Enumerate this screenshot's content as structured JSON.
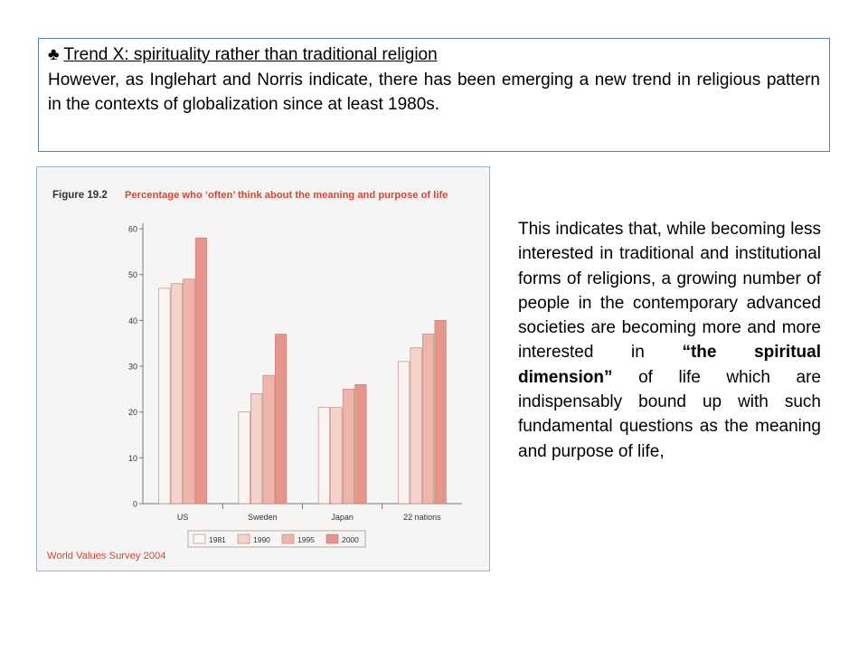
{
  "header": {
    "bullet": "♣",
    "title": "Trend X: spirituality rather than traditional religion",
    "intro": "However, as Inglehart and Norris indicate, there has been emerging a new trend in religious pattern in the contexts of globalization since at least 1980s."
  },
  "side_text": {
    "part1": "This indicates that, while becoming less interested in traditional and institutional forms of religions, a growing number of people in the contemporary advanced societies are becoming more and more interested in ",
    "emphasis": "“the spiritual dimension”",
    "part2": " of life which are indispensably bound up with such fundamental questions as the meaning and purpose of life,"
  },
  "chart_data": {
    "type": "bar",
    "figure_label": "Figure 19.2",
    "title": "Percentage who ‘often’ think about the meaning and purpose of life",
    "source": "World Values Survey 2004",
    "categories": [
      "US",
      "Sweden",
      "Japan",
      "22 nations"
    ],
    "series": [
      {
        "name": "1981",
        "values": [
          47,
          20,
          21,
          31
        ],
        "color": "#fbf4f1"
      },
      {
        "name": "1990",
        "values": [
          48,
          24,
          21,
          34
        ],
        "color": "#f4d3cb"
      },
      {
        "name": "1995",
        "values": [
          49,
          28,
          25,
          37
        ],
        "color": "#eeb6aa"
      },
      {
        "name": "2000",
        "values": [
          58,
          37,
          26,
          40
        ],
        "color": "#e5958a"
      }
    ],
    "yticks": [
      0,
      10,
      20,
      30,
      40,
      50,
      60
    ],
    "ylim": [
      0,
      60
    ],
    "legend_position": "bottom",
    "grid": false,
    "colors": {
      "title": "#d9432f",
      "figure_label": "#333333",
      "source": "#d9432f",
      "bar_stroke": "#c07a70",
      "axis": "#777777"
    }
  }
}
